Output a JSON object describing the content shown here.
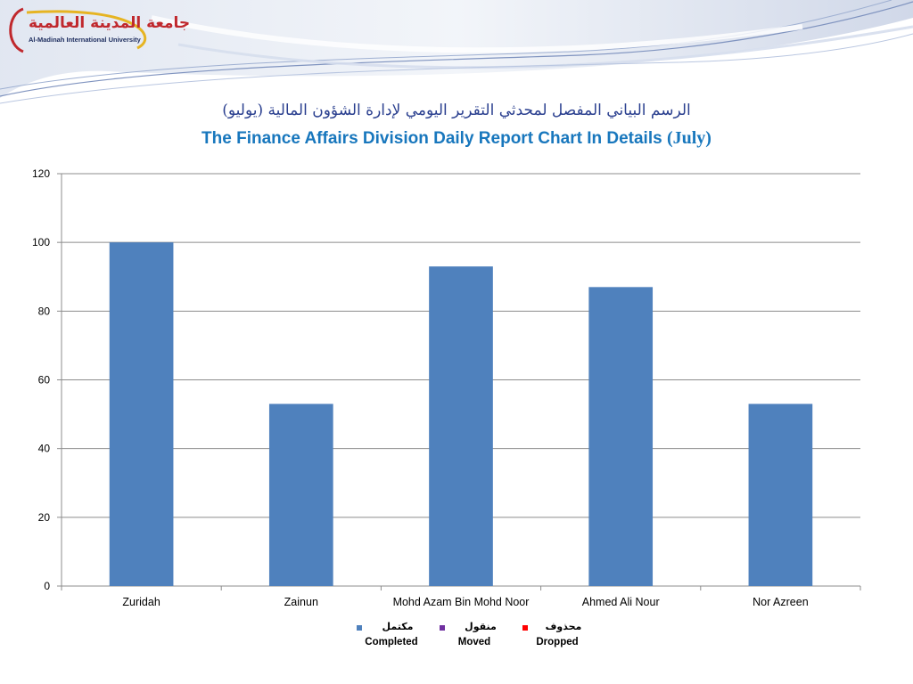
{
  "header": {
    "logo_ar": "جامعة المدينة العالمية",
    "logo_en": "Al-Madinah International University"
  },
  "chart_data": {
    "type": "bar",
    "title_ar": "الرسم البياني المفصل لمحدثي التقرير اليومي لإدارة الشؤون المالية (يوليو)",
    "title_en": "The Finance Affairs Division Daily Report Chart In Details",
    "title_month": "(July)",
    "categories": [
      "Zuridah",
      "Zainun",
      "Mohd Azam Bin Mohd Noor",
      "Ahmed Ali Nour",
      "Nor Azreen"
    ],
    "series": [
      {
        "name": "Completed",
        "values": [
          100,
          53,
          93,
          87,
          53
        ]
      },
      {
        "name": "Moved",
        "values": [
          0,
          0,
          0,
          0,
          0
        ]
      },
      {
        "name": "Dropped",
        "values": [
          0,
          0,
          0,
          0,
          0
        ]
      }
    ],
    "ylim": [
      0,
      120
    ],
    "yticks": [
      0,
      20,
      40,
      60,
      80,
      100,
      120
    ],
    "grid": true,
    "legend_position": "bottom",
    "bar_color": "#4f81bd"
  },
  "legend": [
    {
      "ar": "مكتمل",
      "en": "Completed",
      "color": "#4f81bd",
      "text_color": "#000000"
    },
    {
      "ar": "منقول",
      "en": "Moved",
      "color": "#7030a0",
      "text_color": "#000000"
    },
    {
      "ar": "محذوف",
      "en": "Dropped",
      "color": "#ff0000",
      "text_color": "#000000"
    }
  ]
}
